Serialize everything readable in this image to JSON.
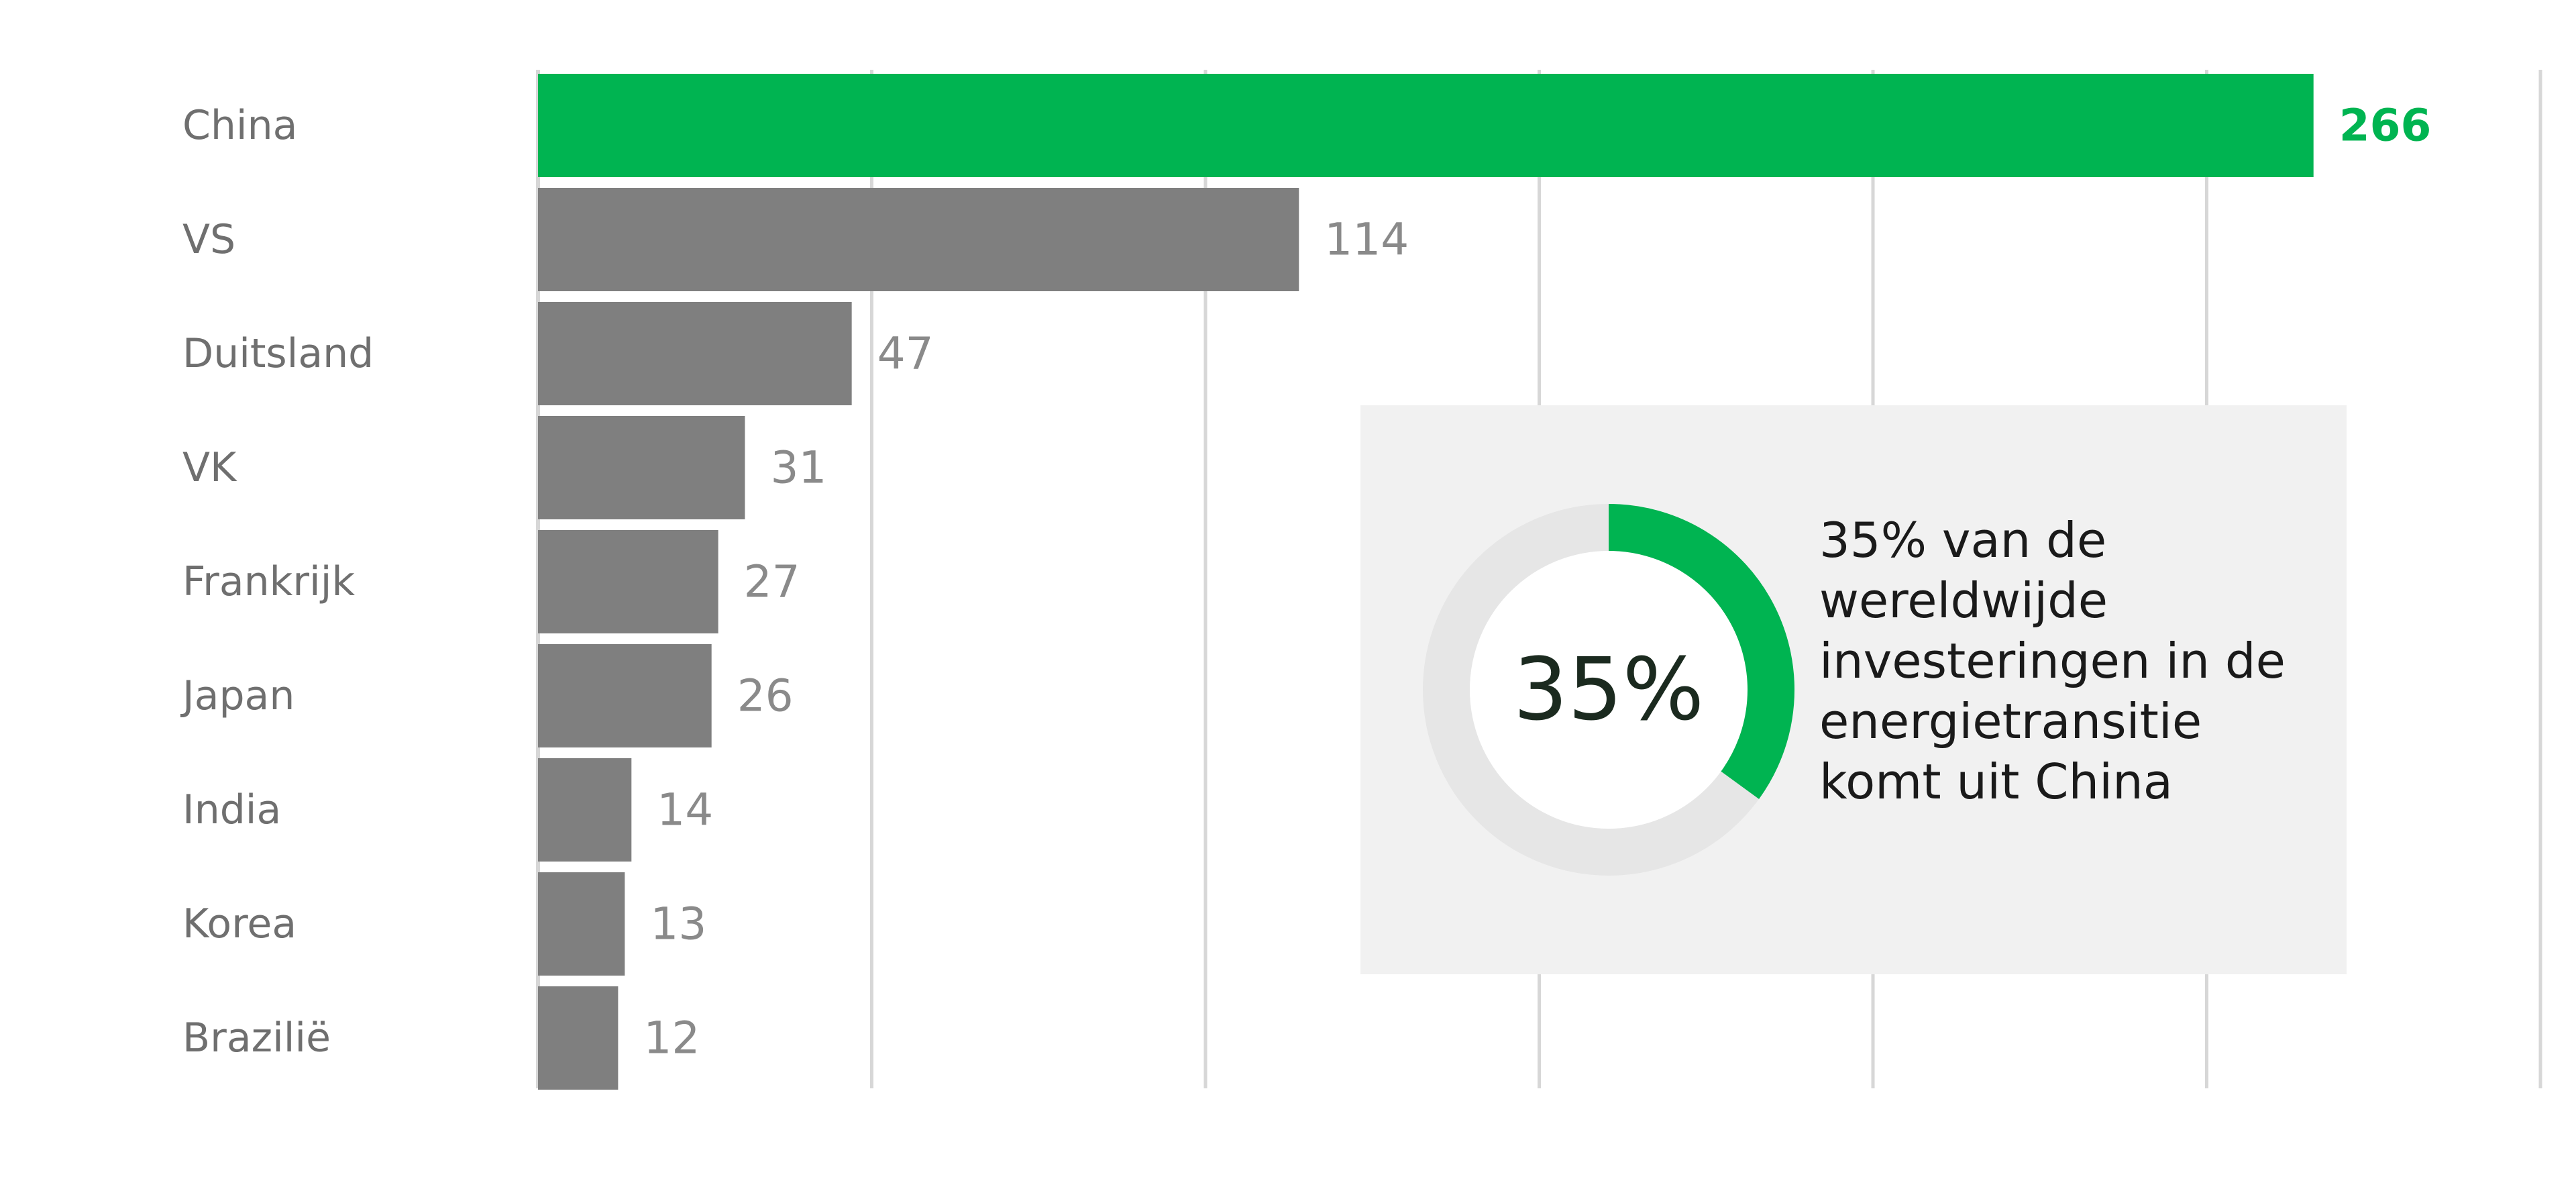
{
  "chart_data": {
    "type": "bar",
    "orientation": "horizontal",
    "categories": [
      "China",
      "VS",
      "Duitsland",
      "VK",
      "Frankrijk",
      "Japan",
      "India",
      "Korea",
      "Brazilië"
    ],
    "values": [
      266,
      114,
      47,
      31,
      27,
      26,
      14,
      13,
      12
    ],
    "highlight_index": 0,
    "xlim": [
      0,
      300
    ],
    "grid": true,
    "colors": {
      "highlight": "#00b451",
      "bar": "#7f7f7f",
      "grid": "#d7d7d7",
      "panel": "#f1f1f1",
      "donut_track": "#e6e6e6"
    },
    "callout": {
      "percent_value": 35,
      "percent_label": "35%",
      "lines": [
        "35% van de",
        "wereldwijde",
        "investeringen in de",
        "energietransitie",
        "komt uit China"
      ]
    }
  }
}
